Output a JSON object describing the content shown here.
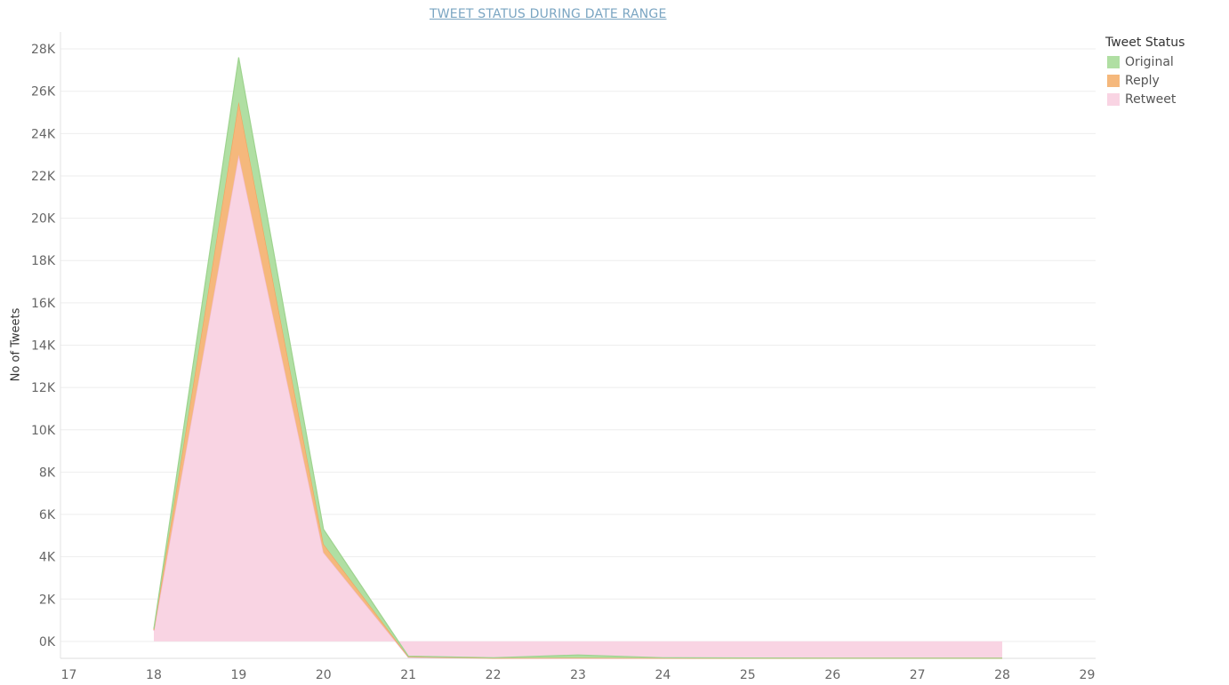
{
  "chart_data": {
    "type": "area",
    "title": "TWEET STATUS DURING DATE RANGE",
    "xlabel": "",
    "ylabel": "No of Tweets",
    "stacked": true,
    "x_ticks": [
      "17",
      "18",
      "19",
      "20",
      "21",
      "22",
      "23",
      "24",
      "25",
      "26",
      "27",
      "28",
      "29"
    ],
    "x": [
      18,
      19,
      20,
      21,
      22,
      23,
      24,
      25,
      26,
      27,
      28
    ],
    "xlim": [
      16.9,
      29.1
    ],
    "ylim": [
      -800,
      28800
    ],
    "y_ticks": [
      "0K",
      "2K",
      "4K",
      "6K",
      "8K",
      "10K",
      "12K",
      "14K",
      "16K",
      "18K",
      "20K",
      "22K",
      "24K",
      "26K",
      "28K"
    ],
    "y_tick_values": [
      0,
      2000,
      4000,
      6000,
      8000,
      10000,
      12000,
      14000,
      16000,
      18000,
      20000,
      22000,
      24000,
      26000,
      28000
    ],
    "grid": true,
    "legend_title": "Tweet Status",
    "legend_position": "top-right",
    "series": [
      {
        "name": "Retweet",
        "color": "#f9d4e3",
        "line": "#f2b8cd",
        "values": [
          500,
          23000,
          4200,
          -750,
          -800,
          -800,
          -800,
          -800,
          -800,
          -800,
          -800
        ]
      },
      {
        "name": "Reply",
        "color": "#f5b87c",
        "line": "#f0a35e",
        "values": [
          50,
          2500,
          400,
          20,
          10,
          20,
          10,
          5,
          5,
          5,
          5
        ]
      },
      {
        "name": "Original",
        "color": "#b0dfa3",
        "line": "#9ed38f",
        "values": [
          50,
          2100,
          700,
          30,
          20,
          140,
          20,
          10,
          5,
          5,
          5
        ]
      }
    ],
    "legend_order": [
      "Original",
      "Reply",
      "Retweet"
    ]
  }
}
